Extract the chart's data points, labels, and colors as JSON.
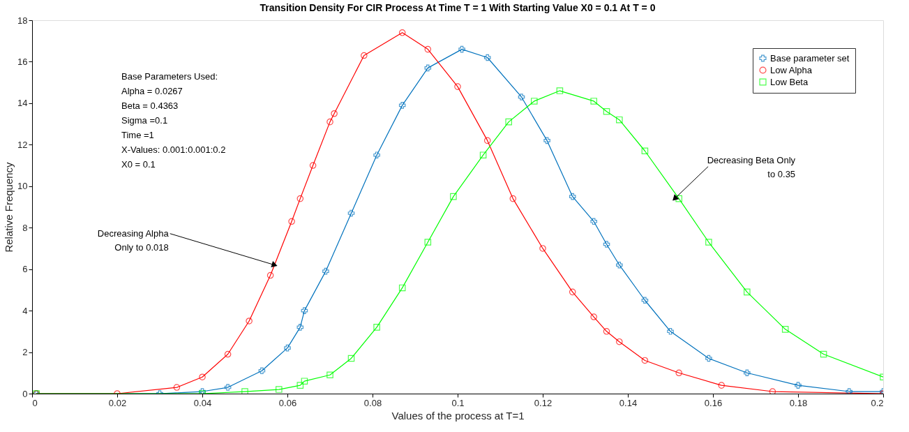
{
  "chart_data": {
    "type": "line",
    "title": "Transition Density For CIR Process At Time T = 1 With Starting Value X0 = 0.1 At T = 0",
    "xlabel": "Values of the process at T=1",
    "ylabel": "Relative Frequency",
    "xlim": [
      0,
      0.2
    ],
    "xticks": [
      0,
      0.02,
      0.04,
      0.06,
      0.08,
      0.1,
      0.12,
      0.14,
      0.16,
      0.18,
      0.2
    ],
    "ylim": [
      0,
      18
    ],
    "yticks": [
      0,
      2,
      4,
      6,
      8,
      10,
      12,
      14,
      16,
      18
    ],
    "legend": "top right",
    "grid": false,
    "series": [
      {
        "name": "Base parameter set",
        "color": "#0072bd",
        "marker": "cross",
        "x": [
          0.001,
          0.03,
          0.04,
          0.046,
          0.054,
          0.06,
          0.063,
          0.064,
          0.069,
          0.075,
          0.081,
          0.087,
          0.093,
          0.101,
          0.107,
          0.115,
          0.121,
          0.127,
          0.132,
          0.135,
          0.138,
          0.144,
          0.15,
          0.159,
          0.168,
          0.18,
          0.192,
          0.2
        ],
        "values": [
          0.0,
          0.0,
          0.1,
          0.3,
          1.1,
          2.2,
          3.2,
          4.0,
          5.9,
          8.7,
          11.5,
          13.9,
          15.7,
          16.6,
          16.2,
          14.3,
          12.2,
          9.5,
          8.3,
          7.2,
          6.2,
          4.5,
          3.0,
          1.7,
          1.0,
          0.4,
          0.1,
          0.1
        ]
      },
      {
        "name": "Low Alpha",
        "color": "#ff0000",
        "marker": "circle",
        "x": [
          0.001,
          0.02,
          0.034,
          0.04,
          0.046,
          0.051,
          0.056,
          0.061,
          0.063,
          0.066,
          0.07,
          0.071,
          0.078,
          0.087,
          0.093,
          0.1,
          0.107,
          0.113,
          0.12,
          0.127,
          0.132,
          0.135,
          0.138,
          0.144,
          0.152,
          0.162,
          0.174,
          0.2
        ],
        "values": [
          0.0,
          0.0,
          0.3,
          0.8,
          1.9,
          3.5,
          5.7,
          8.3,
          9.4,
          11.0,
          13.1,
          13.5,
          16.3,
          17.4,
          16.6,
          14.8,
          12.2,
          9.4,
          7.0,
          4.9,
          3.7,
          3.0,
          2.5,
          1.6,
          1.0,
          0.4,
          0.1,
          0.0
        ]
      },
      {
        "name": "Low Beta",
        "color": "#00ff00",
        "marker": "square",
        "x": [
          0.001,
          0.04,
          0.05,
          0.058,
          0.063,
          0.064,
          0.07,
          0.075,
          0.081,
          0.087,
          0.093,
          0.099,
          0.106,
          0.112,
          0.118,
          0.124,
          0.132,
          0.135,
          0.138,
          0.144,
          0.152,
          0.159,
          0.168,
          0.177,
          0.186,
          0.2
        ],
        "values": [
          0.0,
          0.0,
          0.1,
          0.2,
          0.4,
          0.6,
          0.9,
          1.7,
          3.2,
          5.1,
          7.3,
          9.5,
          11.5,
          13.1,
          14.1,
          14.6,
          14.1,
          13.6,
          13.2,
          11.7,
          9.4,
          7.3,
          4.9,
          3.1,
          1.9,
          0.8
        ]
      }
    ],
    "annotations": [
      "Base Parameters Used:\nAlpha = 0.0267\nBeta = 0.4363\nSigma =0.1\nTime =1\nX-Values: 0.001:0.001:0.2\nX0 = 0.1",
      {
        "text": "Decreasing Alpha\nOnly to 0.018",
        "x": 0.057,
        "y": 6.2
      },
      {
        "text": "Decreasing Beta Only\nto 0.35",
        "x": 0.151,
        "y": 9.4
      }
    ]
  }
}
